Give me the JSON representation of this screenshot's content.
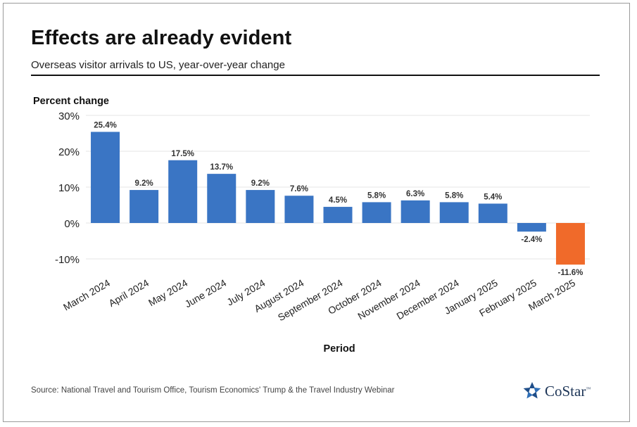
{
  "header": {
    "title": "Effects are already evident",
    "subtitle": "Overseas visitor arrivals to US, year-over-year change"
  },
  "footer": {
    "source": "Source: National Travel and Tourism Office, Tourism Economics' Trump & the Travel Industry Webinar",
    "brand": "CoStar",
    "brand_tm": "™",
    "logo_icon": "costar-star-logo-icon"
  },
  "chart_data": {
    "type": "bar",
    "ylabel": "Percent change",
    "xlabel": "Period",
    "categories": [
      "March 2024",
      "April 2024",
      "May 2024",
      "June 2024",
      "July 2024",
      "August 2024",
      "September 2024",
      "October 2024",
      "November 2024",
      "December 2024",
      "January 2025",
      "February 2025",
      "March 2025"
    ],
    "values": [
      25.4,
      9.2,
      17.5,
      13.7,
      9.2,
      7.6,
      4.5,
      5.8,
      6.3,
      5.8,
      5.4,
      -2.4,
      -11.6
    ],
    "data_labels": [
      "25.4%",
      "9.2%",
      "17.5%",
      "13.7%",
      "9.2%",
      "7.6%",
      "4.5%",
      "5.8%",
      "6.3%",
      "5.8%",
      "5.4%",
      "-2.4%",
      "-11.6%"
    ],
    "bar_colors": [
      "#3a75c4",
      "#3a75c4",
      "#3a75c4",
      "#3a75c4",
      "#3a75c4",
      "#3a75c4",
      "#3a75c4",
      "#3a75c4",
      "#3a75c4",
      "#3a75c4",
      "#3a75c4",
      "#3a75c4",
      "#f06a2a"
    ],
    "yticks": [
      30,
      20,
      10,
      0,
      -10
    ],
    "ytick_labels": [
      "30%",
      "20%",
      "10%",
      "0%",
      "-10%"
    ],
    "ylim": [
      -15,
      30
    ],
    "grid": true,
    "legend": "none"
  }
}
